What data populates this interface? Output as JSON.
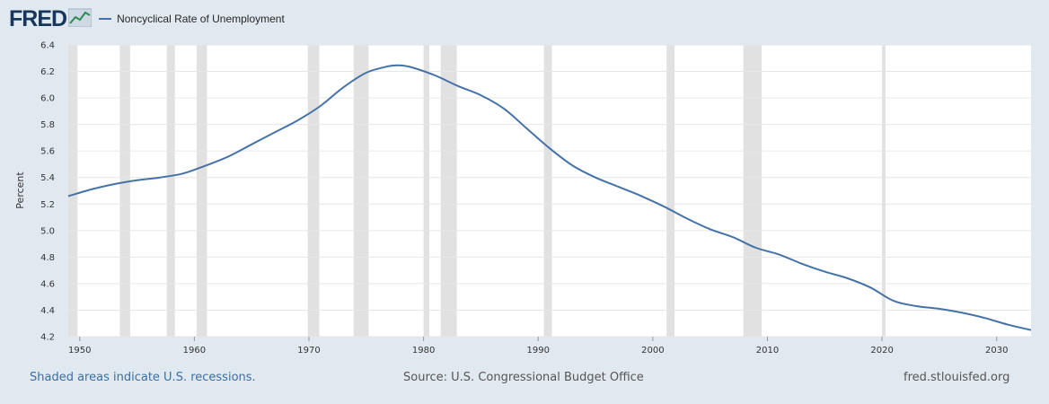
{
  "header": {
    "logo_text": "FRED",
    "logo_icon": "line-graph-icon",
    "legend_label": "Noncyclical Rate of Unemployment"
  },
  "footer": {
    "recession_note": "Shaded areas indicate U.S. recessions.",
    "source": "Source: U.S. Congressional Budget Office",
    "site": "fred.stlouisfed.org"
  },
  "colors": {
    "line": "#4572a7",
    "recession": "#e1e1e1",
    "brand": "#17365d",
    "page_bg": "#e1e9f0"
  },
  "chart_data": {
    "type": "line",
    "title": "Noncyclical Rate of Unemployment",
    "xlabel": "",
    "ylabel": "Percent",
    "xlim": [
      1949,
      2033
    ],
    "ylim": [
      4.2,
      6.4
    ],
    "yticks": [
      4.2,
      4.4,
      4.6,
      4.8,
      5.0,
      5.2,
      5.4,
      5.6,
      5.8,
      6.0,
      6.2,
      6.4
    ],
    "xticks": [
      1950,
      1960,
      1970,
      1980,
      1990,
      2000,
      2010,
      2020,
      2030
    ],
    "grid": true,
    "recessions": [
      [
        1949.0,
        1949.8
      ],
      [
        1953.5,
        1954.4
      ],
      [
        1957.6,
        1958.3
      ],
      [
        1960.2,
        1961.1
      ],
      [
        1969.9,
        1970.9
      ],
      [
        1973.9,
        1975.2
      ],
      [
        1980.0,
        1980.5
      ],
      [
        1981.5,
        1982.9
      ],
      [
        1990.5,
        1991.2
      ],
      [
        2001.2,
        2001.9
      ],
      [
        2007.9,
        2009.5
      ],
      [
        2020.0,
        2020.3
      ]
    ],
    "series": [
      {
        "name": "Noncyclical Rate of Unemployment",
        "x": [
          1949,
          1951,
          1953,
          1955,
          1957,
          1959,
          1961,
          1963,
          1965,
          1967,
          1969,
          1971,
          1973,
          1975,
          1977,
          1978,
          1979,
          1981,
          1983,
          1985,
          1987,
          1989,
          1991,
          1993,
          1995,
          1997,
          1999,
          2001,
          2003,
          2005,
          2007,
          2009,
          2011,
          2013,
          2015,
          2017,
          2019,
          2021,
          2023,
          2025,
          2027,
          2029,
          2031,
          2033
        ],
        "values": [
          5.26,
          5.31,
          5.35,
          5.38,
          5.4,
          5.43,
          5.49,
          5.56,
          5.65,
          5.74,
          5.83,
          5.94,
          6.08,
          6.19,
          6.24,
          6.245,
          6.23,
          6.17,
          6.09,
          6.02,
          5.92,
          5.77,
          5.62,
          5.49,
          5.4,
          5.33,
          5.26,
          5.18,
          5.09,
          5.01,
          4.95,
          4.87,
          4.82,
          4.75,
          4.69,
          4.64,
          4.57,
          4.47,
          4.43,
          4.41,
          4.38,
          4.34,
          4.29,
          4.25
        ]
      }
    ]
  }
}
